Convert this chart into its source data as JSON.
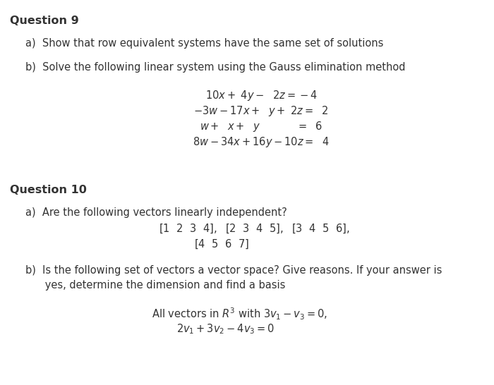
{
  "bg_color": "#ffffff",
  "text_color": "#333333",
  "q9_title": "Question 9",
  "q9a": "a)  Show that row equivalent systems have the same set of solutions",
  "q9b": "b)  Solve the following linear system using the Gauss elimination method",
  "q10_title": "Question 10",
  "q10a": "a)  Are the following vectors linearly independent?",
  "q10b_text1": "b)  Is the following set of vectors a vector space? Give reasons. If your answer is",
  "q10b_text2": "      yes, determine the dimension and find a basis"
}
